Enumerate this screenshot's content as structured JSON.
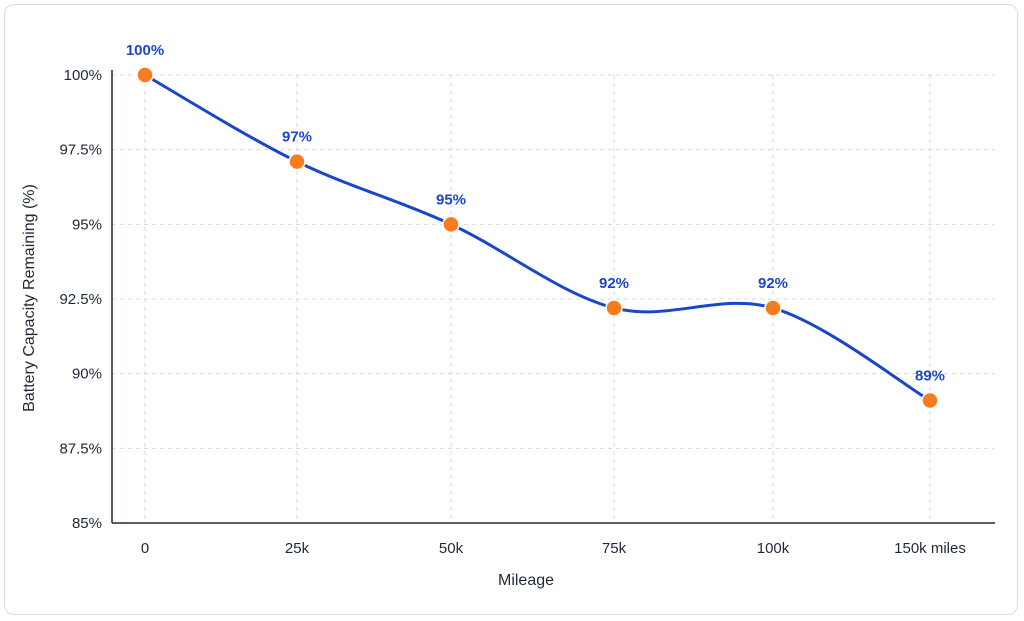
{
  "chart_data": {
    "type": "line",
    "x": [
      "0",
      "25k",
      "50k",
      "75k",
      "100k",
      "150k miles"
    ],
    "series": [
      {
        "values": [
          100,
          97.1,
          95,
          92.2,
          92.2,
          89.1
        ]
      }
    ],
    "data_labels": [
      "100%",
      "97%",
      "95%",
      "92%",
      "92%",
      "89%"
    ],
    "y_ticks": [
      100,
      97.5,
      95,
      92.5,
      90,
      87.5,
      85
    ],
    "y_tick_labels": [
      "100%",
      "97.5%",
      "95%",
      "92.5%",
      "90%",
      "87.5%",
      "85%"
    ],
    "xlabel": "Mileage",
    "ylabel": "Battery Capacity Remaining (%)",
    "ylim": [
      85,
      100
    ],
    "grid": true,
    "smooth": true,
    "colors": {
      "line": "#1a47c9",
      "marker": "#f77c1e",
      "label": "#1a47c9",
      "grid": "#d9d9d9",
      "axis": "#1f2937"
    }
  }
}
